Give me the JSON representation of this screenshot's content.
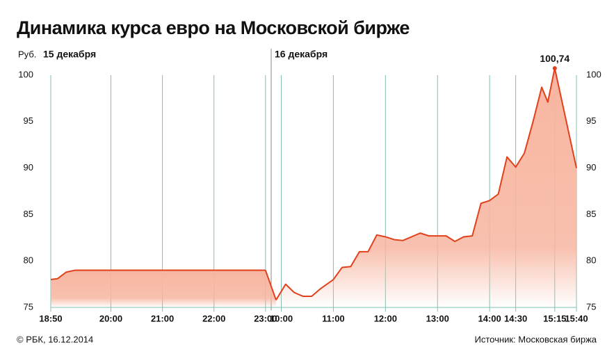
{
  "chart_data": {
    "type": "area",
    "title": "Динамика курса евро на Московской бирже",
    "y_label": "Руб.",
    "ylim": [
      75,
      100
    ],
    "yticks": [
      75,
      80,
      85,
      90,
      95,
      100
    ],
    "color": "#e2401a",
    "fill": "#f7b5a0",
    "grid_color": "#7fbfb3",
    "panels": [
      {
        "label": "15 декабря",
        "xlim": [
          "18:50",
          "23:05"
        ],
        "xticks": [
          "18:50",
          "20:00",
          "21:00",
          "22:00",
          "23:00"
        ],
        "x": [
          "18:50",
          "18:58",
          "19:08",
          "19:18",
          "23:00"
        ],
        "values": [
          78.0,
          78.1,
          78.8,
          79.0,
          79.0
        ],
        "value_labels": [
          null,
          null,
          null,
          null,
          null
        ]
      },
      {
        "label": "16 декабря",
        "xlim": [
          "09:50",
          "15:40"
        ],
        "xticks": [
          "10:00",
          "11:00",
          "12:00",
          "13:00",
          "14:00",
          "14:30",
          "15:15",
          "15:40"
        ],
        "x": [
          "09:54",
          "10:05",
          "10:15",
          "10:25",
          "10:35",
          "10:45",
          "11:00",
          "11:10",
          "11:20",
          "11:30",
          "11:40",
          "11:50",
          "12:00",
          "12:10",
          "12:20",
          "12:40",
          "12:50",
          "13:10",
          "13:20",
          "13:30",
          "13:40",
          "13:50",
          "14:00",
          "14:10",
          "14:20",
          "14:30",
          "14:40",
          "14:50",
          "15:00",
          "15:07",
          "15:15",
          "15:40"
        ],
        "values": [
          75.8,
          77.5,
          76.6,
          76.2,
          76.2,
          77.0,
          78.0,
          79.3,
          79.4,
          81.0,
          81.0,
          82.8,
          82.6,
          82.3,
          82.2,
          83.0,
          82.7,
          82.7,
          82.1,
          82.6,
          82.7,
          86.2,
          86.5,
          87.2,
          91.2,
          90.1,
          91.6,
          95.0,
          98.7,
          97.1,
          100.74,
          90.0
        ],
        "value_labels": [
          null,
          null,
          null,
          null,
          null,
          null,
          null,
          null,
          null,
          null,
          null,
          null,
          null,
          null,
          null,
          null,
          null,
          null,
          null,
          null,
          null,
          null,
          null,
          null,
          null,
          null,
          null,
          null,
          null,
          null,
          "100,74",
          null
        ]
      }
    ],
    "footer_left": "© РБК, 16.12.2014",
    "footer_right": "Источник: Московская биржа"
  }
}
